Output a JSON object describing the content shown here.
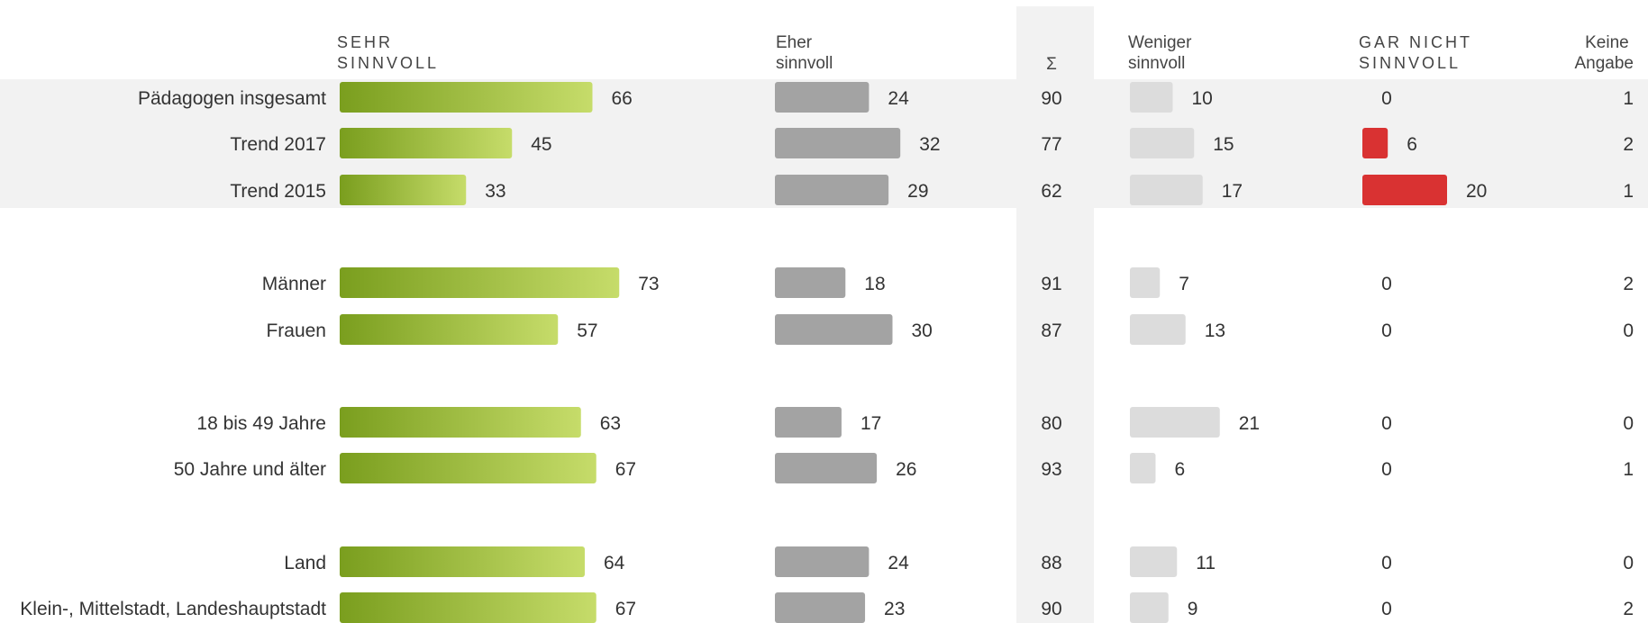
{
  "chart_data": {
    "type": "bar",
    "headers": {
      "sehr_sinnvoll": [
        "SEHR",
        "SINNVOLL"
      ],
      "eher_sinnvoll": [
        "Eher",
        "sinnvoll"
      ],
      "sum": "Σ",
      "weniger_sinnvoll": [
        "Weniger",
        "sinnvoll"
      ],
      "gar_nicht_sinnvoll": [
        "GAR NICHT",
        "SINNVOLL"
      ],
      "keine_angabe": [
        "Keine",
        "Angabe"
      ]
    },
    "rows": [
      {
        "label": "Pädagogen insgesamt",
        "sehr": 66,
        "eher": 24,
        "sum": 90,
        "weniger": 10,
        "gar_nicht": 0,
        "keine": 1,
        "highlight": true
      },
      {
        "label": "Trend 2017",
        "sehr": 45,
        "eher": 32,
        "sum": 77,
        "weniger": 15,
        "gar_nicht": 6,
        "keine": 2,
        "highlight": true
      },
      {
        "label": "Trend 2015",
        "sehr": 33,
        "eher": 29,
        "sum": 62,
        "weniger": 17,
        "gar_nicht": 20,
        "keine": 1,
        "highlight": true
      },
      {
        "label": "Männer",
        "sehr": 73,
        "eher": 18,
        "sum": 91,
        "weniger": 7,
        "gar_nicht": 0,
        "keine": 2,
        "highlight": false
      },
      {
        "label": "Frauen",
        "sehr": 57,
        "eher": 30,
        "sum": 87,
        "weniger": 13,
        "gar_nicht": 0,
        "keine": 0,
        "highlight": false
      },
      {
        "label": "18 bis 49 Jahre",
        "sehr": 63,
        "eher": 17,
        "sum": 80,
        "weniger": 21,
        "gar_nicht": 0,
        "keine": 0,
        "highlight": false
      },
      {
        "label": "50 Jahre und älter",
        "sehr": 67,
        "eher": 26,
        "sum": 93,
        "weniger": 6,
        "gar_nicht": 0,
        "keine": 1,
        "highlight": false
      },
      {
        "label": "Land",
        "sehr": 64,
        "eher": 24,
        "sum": 88,
        "weniger": 11,
        "gar_nicht": 0,
        "keine": 0,
        "highlight": false
      },
      {
        "label": "Klein-, Mittelstadt, Landeshauptstadt",
        "sehr": 67,
        "eher": 23,
        "sum": 90,
        "weniger": 9,
        "gar_nicht": 0,
        "keine": 2,
        "highlight": false
      }
    ],
    "colors": {
      "sehr_start": "#7a9e1e",
      "sehr_end": "#c6dc6a",
      "eher": "#a3a3a3",
      "weniger": "#dcdcdc",
      "gar_nicht": "#d93232",
      "band": "#f2f2f2"
    }
  }
}
